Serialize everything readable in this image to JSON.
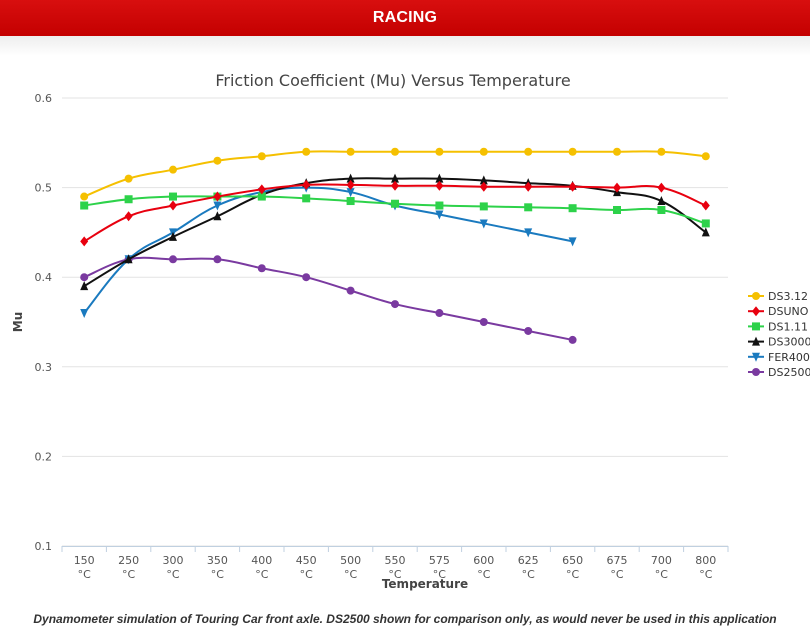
{
  "header": {
    "title": "RACING"
  },
  "caption": "Dynamometer simulation of Touring Car front axle. DS2500 shown for comparison only, as would never be used in this application",
  "chart_data": {
    "type": "line",
    "title": "Friction Coefficient (Mu) Versus Temperature",
    "xlabel": "Temperature",
    "ylabel": "Mu",
    "categories": [
      "150 °C",
      "250 °C",
      "300 °C",
      "350 °C",
      "400 °C",
      "450 °C",
      "500 °C",
      "550 °C",
      "575 °C",
      "600 °C",
      "625 °C",
      "650 °C",
      "675 °C",
      "700 °C",
      "800 °C"
    ],
    "ylim": [
      0.1,
      0.6
    ],
    "yticks": [
      0.1,
      0.2,
      0.3,
      0.4,
      0.5,
      0.6
    ],
    "grid": "horizontal",
    "legend_position": "right",
    "series": [
      {
        "name": "DS3.12",
        "color": "#f5c000",
        "marker": "circle",
        "values": [
          0.49,
          0.51,
          0.52,
          0.53,
          0.535,
          0.54,
          0.54,
          0.54,
          0.54,
          0.54,
          0.54,
          0.54,
          0.54,
          0.54,
          0.535
        ]
      },
      {
        "name": "DSUNO",
        "color": "#e8000f",
        "marker": "diamond",
        "values": [
          0.44,
          0.468,
          0.48,
          0.49,
          0.498,
          0.503,
          0.503,
          0.502,
          0.502,
          0.501,
          0.501,
          0.501,
          0.5,
          0.5,
          0.48
        ]
      },
      {
        "name": "DS1.11",
        "color": "#2dd24a",
        "marker": "square",
        "values": [
          0.48,
          0.487,
          0.49,
          0.49,
          0.49,
          0.488,
          0.485,
          0.482,
          0.48,
          0.479,
          0.478,
          0.477,
          0.475,
          0.475,
          0.46
        ]
      },
      {
        "name": "DS3000",
        "color": "#111111",
        "marker": "triangle",
        "values": [
          0.39,
          0.42,
          0.445,
          0.468,
          0.492,
          0.505,
          0.51,
          0.51,
          0.51,
          0.508,
          0.505,
          0.502,
          0.495,
          0.485,
          0.45
        ]
      },
      {
        "name": "FER400",
        "color": "#1a7abf",
        "marker": "triangle-down",
        "values": [
          0.36,
          0.42,
          0.45,
          0.48,
          0.495,
          0.5,
          0.495,
          0.48,
          0.47,
          0.46,
          0.45,
          0.44,
          null,
          null,
          null
        ]
      },
      {
        "name": "DS2500",
        "color": "#7a3aa0",
        "marker": "circle",
        "values": [
          0.4,
          0.42,
          0.42,
          0.42,
          0.41,
          0.4,
          0.385,
          0.37,
          0.36,
          0.35,
          0.34,
          0.33,
          null,
          null,
          null
        ]
      }
    ]
  }
}
